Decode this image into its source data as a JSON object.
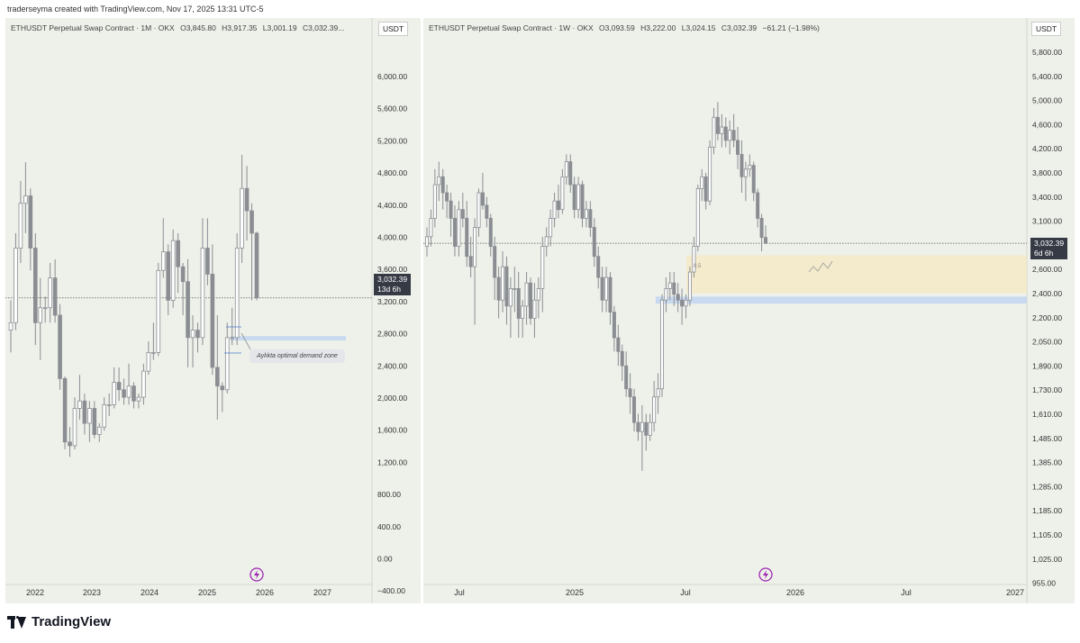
{
  "header": {
    "text": "traderseyma created with TradingView.com, Nov 17, 2025 13:31 UTC-5"
  },
  "brand": {
    "name": "TradingView"
  },
  "colors": {
    "candle": "#8a8d92",
    "panel_bg": "#eef1ea",
    "demand_zone": "#c9d9f0",
    "fib_zone": "#f6e7c1",
    "last_price_tag": "#363a45"
  },
  "left": {
    "legend": {
      "symbol": "ETHUSDT Perpetual Swap Contract · 1M · OKX",
      "open": "O3,845.80",
      "high": "H3,917.35",
      "low": "L3,001.19",
      "close": "C3,032.39..."
    },
    "unit": "USDT",
    "last_price": "3,032.39",
    "countdown": "13d 6h",
    "annotation": "Aylıkta optimal demand zone"
  },
  "right": {
    "legend": {
      "symbol": "ETHUSDT Perpetual Swap Contract · 1W · OKX",
      "open": "O3,093.59",
      "high": "H3,222.00",
      "low": "L3,024.15",
      "close": "C3,032.39",
      "change": "−61.21 (−1.98%)"
    },
    "unit": "USDT",
    "last_price": "3,032.39",
    "countdown": "6d 6h",
    "fib_label": "0.5"
  },
  "chart_data": [
    {
      "type": "candlestick",
      "title": "ETHUSDT Perpetual Swap Contract · 1M · OKX",
      "y_ticks": [
        "6,000.00",
        "5,600.00",
        "5,200.00",
        "4,800.00",
        "4,400.00",
        "4,000.00",
        "3,600.00",
        "3,200.00",
        "2,800.00",
        "2,400.00",
        "2,000.00",
        "1,600.00",
        "1,200.00",
        "800.00",
        "400.00",
        "0.00",
        "−400.00"
      ],
      "x_ticks": [
        "2022",
        "2023",
        "2024",
        "2025",
        "2026",
        "2027"
      ],
      "ylim": [
        -400,
        6000
      ],
      "ohlc": [
        [
          2600,
          3000,
          2300,
          2700
        ],
        [
          2700,
          3900,
          2600,
          3700
        ],
        [
          3700,
          4600,
          3500,
          4300
        ],
        [
          4300,
          4850,
          3900,
          4400
        ],
        [
          4400,
          4500,
          3400,
          3700
        ],
        [
          3700,
          3900,
          2400,
          2700
        ],
        [
          2700,
          3300,
          2200,
          2900
        ],
        [
          2900,
          3050,
          2700,
          2900
        ],
        [
          2900,
          3500,
          2700,
          3300
        ],
        [
          3300,
          3550,
          2700,
          2800
        ],
        [
          2800,
          2950,
          1800,
          1950
        ],
        [
          1950,
          1980,
          1000,
          1100
        ],
        [
          1100,
          1300,
          900,
          1050
        ],
        [
          1050,
          1700,
          1000,
          1550
        ],
        [
          1550,
          2000,
          1400,
          1650
        ],
        [
          1650,
          1750,
          1200,
          1350
        ],
        [
          1350,
          1650,
          1100,
          1550
        ],
        [
          1550,
          1650,
          1150,
          1200
        ],
        [
          1200,
          1350,
          1100,
          1300
        ],
        [
          1300,
          1700,
          1250,
          1600
        ],
        [
          1600,
          1750,
          1450,
          1600
        ],
        [
          1600,
          2100,
          1550,
          1900
        ],
        [
          1900,
          2100,
          1650,
          1800
        ],
        [
          1800,
          1950,
          1600,
          1700
        ],
        [
          1700,
          2150,
          1600,
          1850
        ],
        [
          1850,
          1900,
          1550,
          1650
        ],
        [
          1650,
          1750,
          1550,
          1700
        ],
        [
          1700,
          2150,
          1600,
          2050
        ],
        [
          2050,
          2450,
          2000,
          2300
        ],
        [
          2300,
          2700,
          2200,
          2300
        ],
        [
          2300,
          3500,
          2250,
          3400
        ],
        [
          3400,
          4100,
          3300,
          3650
        ],
        [
          3650,
          3750,
          2800,
          3000
        ],
        [
          3000,
          3950,
          2900,
          3800
        ],
        [
          3800,
          3900,
          3100,
          3450
        ],
        [
          3450,
          3500,
          2800,
          3250
        ],
        [
          3250,
          3550,
          2100,
          2500
        ],
        [
          2500,
          2800,
          2100,
          2600
        ],
        [
          2600,
          2700,
          2300,
          2500
        ],
        [
          2500,
          4100,
          2400,
          3700
        ],
        [
          3700,
          4100,
          3200,
          3350
        ],
        [
          3350,
          3750,
          2000,
          2100
        ],
        [
          2100,
          2800,
          1400,
          1850
        ],
        [
          1850,
          1900,
          1500,
          1800
        ],
        [
          1800,
          2700,
          1750,
          2500
        ],
        [
          2500,
          2900,
          2400,
          2500
        ],
        [
          2500,
          3900,
          2400,
          3700
        ],
        [
          3700,
          4950,
          3500,
          4500
        ],
        [
          4500,
          4800,
          3800,
          4200
        ],
        [
          4200,
          4300,
          3000,
          3900
        ],
        [
          3900,
          3920,
          3000,
          3032
        ]
      ]
    },
    {
      "type": "candlestick",
      "title": "ETHUSDT Perpetual Swap Contract · 1W · OKX",
      "y_ticks": [
        "5,800.00",
        "5,400.00",
        "5,000.00",
        "4,600.00",
        "4,200.00",
        "3,800.00",
        "3,400.00",
        "3,100.00",
        "2,800.00",
        "2,600.00",
        "2,400.00",
        "2,200.00",
        "2,050.00",
        "1,890.00",
        "1,730.00",
        "1,610.00",
        "1,485.00",
        "1,385.00",
        "1,285.00",
        "1,185.00",
        "1,105.00",
        "1,025.00",
        "955.00"
      ],
      "x_ticks": [
        "Jul",
        "2025",
        "Jul",
        "2026",
        "Jul",
        "2027"
      ],
      "ylim": [
        955,
        6000
      ],
      "ohlc": [
        [
          3000,
          3200,
          2900,
          3100
        ],
        [
          3100,
          3400,
          3000,
          3300
        ],
        [
          3300,
          3900,
          3200,
          3700
        ],
        [
          3700,
          4000,
          3500,
          3800
        ],
        [
          3800,
          3900,
          3400,
          3600
        ],
        [
          3600,
          3700,
          3300,
          3500
        ],
        [
          3500,
          3600,
          3100,
          3300
        ],
        [
          3300,
          3450,
          2900,
          3000
        ],
        [
          3000,
          3500,
          2900,
          3400
        ],
        [
          3400,
          3600,
          3200,
          3300
        ],
        [
          3300,
          3500,
          2800,
          2900
        ],
        [
          2900,
          3100,
          2700,
          2800
        ],
        [
          2800,
          3300,
          2300,
          3200
        ],
        [
          3200,
          3650,
          3100,
          3600
        ],
        [
          3600,
          3850,
          3400,
          3450
        ],
        [
          3450,
          3550,
          3200,
          3300
        ],
        [
          3300,
          3350,
          2900,
          3000
        ],
        [
          3000,
          3100,
          2500,
          2700
        ],
        [
          2700,
          2800,
          2350,
          2500
        ],
        [
          2500,
          2950,
          2400,
          2800
        ],
        [
          2800,
          2900,
          2300,
          2450
        ],
        [
          2450,
          2700,
          2200,
          2600
        ],
        [
          2600,
          2800,
          2400,
          2600
        ],
        [
          2600,
          2750,
          2200,
          2350
        ],
        [
          2350,
          2500,
          2200,
          2450
        ],
        [
          2450,
          2750,
          2300,
          2650
        ],
        [
          2650,
          2700,
          2300,
          2350
        ],
        [
          2350,
          2650,
          2200,
          2500
        ],
        [
          2500,
          2700,
          2350,
          2600
        ],
        [
          2600,
          3100,
          2400,
          3000
        ],
        [
          3000,
          3200,
          2900,
          3100
        ],
        [
          3100,
          3400,
          3000,
          3300
        ],
        [
          3300,
          3600,
          3200,
          3500
        ],
        [
          3500,
          3700,
          3300,
          3400
        ],
        [
          3400,
          3900,
          3350,
          3800
        ],
        [
          3800,
          4100,
          3700,
          4000
        ],
        [
          4000,
          4100,
          3600,
          3700
        ],
        [
          3700,
          3800,
          3300,
          3400
        ],
        [
          3400,
          3800,
          3300,
          3700
        ],
        [
          3700,
          3750,
          3200,
          3300
        ],
        [
          3300,
          3500,
          3200,
          3400
        ],
        [
          3400,
          3500,
          3100,
          3200
        ],
        [
          3200,
          3300,
          2800,
          2900
        ],
        [
          2900,
          3000,
          2600,
          2700
        ],
        [
          2700,
          2800,
          2400,
          2500
        ],
        [
          2500,
          2800,
          2400,
          2700
        ],
        [
          2700,
          2750,
          2300,
          2400
        ],
        [
          2400,
          2450,
          2100,
          2200
        ],
        [
          2200,
          2300,
          2000,
          2100
        ],
        [
          2100,
          2150,
          1900,
          2000
        ],
        [
          2000,
          2100,
          1800,
          1850
        ],
        [
          1850,
          1950,
          1700,
          1800
        ],
        [
          1800,
          1850,
          1600,
          1650
        ],
        [
          1650,
          1700,
          1550,
          1600
        ],
        [
          1600,
          1750,
          1400,
          1650
        ],
        [
          1650,
          1700,
          1500,
          1580
        ],
        [
          1580,
          1700,
          1550,
          1650
        ],
        [
          1650,
          1900,
          1600,
          1800
        ],
        [
          1800,
          1950,
          1700,
          1850
        ],
        [
          1850,
          2550,
          1800,
          2500
        ],
        [
          2500,
          2700,
          2400,
          2600
        ],
        [
          2600,
          2750,
          2500,
          2650
        ],
        [
          2650,
          2750,
          2450,
          2550
        ],
        [
          2550,
          2650,
          2400,
          2500
        ],
        [
          2500,
          2600,
          2300,
          2450
        ],
        [
          2450,
          2550,
          2350,
          2500
        ],
        [
          2500,
          2800,
          2450,
          2750
        ],
        [
          2750,
          3100,
          2700,
          3000
        ],
        [
          3000,
          3700,
          2950,
          3650
        ],
        [
          3650,
          3900,
          3500,
          3800
        ],
        [
          3800,
          3850,
          3400,
          3500
        ],
        [
          3500,
          4300,
          3450,
          4200
        ],
        [
          4200,
          4800,
          4100,
          4650
        ],
        [
          4650,
          4900,
          4300,
          4400
        ],
        [
          4400,
          4700,
          4200,
          4500
        ],
        [
          4500,
          4650,
          4200,
          4300
        ],
        [
          4300,
          4600,
          4100,
          4450
        ],
        [
          4450,
          4700,
          4200,
          4300
        ],
        [
          4300,
          4500,
          3900,
          4100
        ],
        [
          4100,
          4300,
          3600,
          3800
        ],
        [
          3800,
          4000,
          3500,
          3900
        ],
        [
          3900,
          4100,
          3800,
          3950
        ],
        [
          3950,
          4000,
          3500,
          3600
        ],
        [
          3600,
          3650,
          3200,
          3300
        ],
        [
          3300,
          3350,
          2950,
          3093
        ],
        [
          3093,
          3222,
          3024,
          3032
        ]
      ]
    }
  ]
}
